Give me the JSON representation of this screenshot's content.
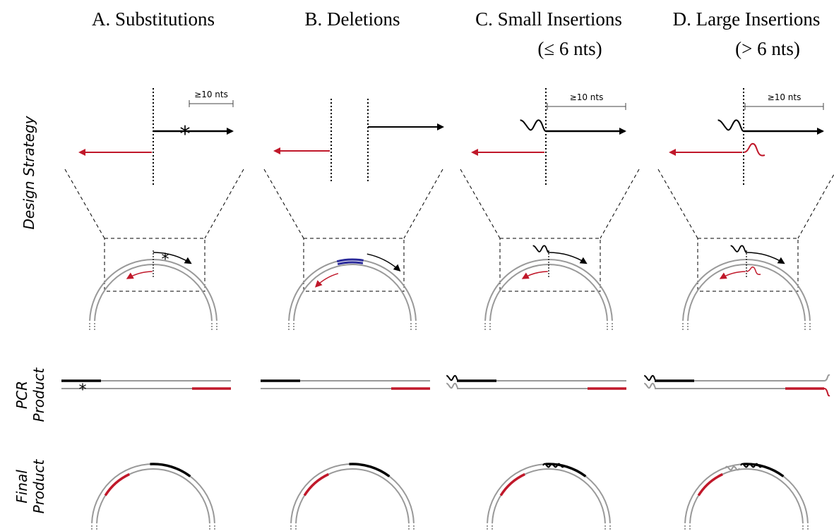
{
  "columns": [
    {
      "title": "A. Substitutions",
      "annotation": "≥10 nts"
    },
    {
      "title": "B. Deletions"
    },
    {
      "title": "C. Small Insertions",
      "subtitle": "(≤ 6 nts)",
      "annotation": "≥10 nts"
    },
    {
      "title": "D. Large Insertions",
      "subtitle": "(> 6 nts)",
      "annotation": "≥10 nts"
    }
  ],
  "rows": [
    {
      "label": [
        "Design Strategy"
      ]
    },
    {
      "label": [
        "PCR",
        "Product"
      ]
    },
    {
      "label": [
        "Final",
        "Product"
      ]
    }
  ]
}
